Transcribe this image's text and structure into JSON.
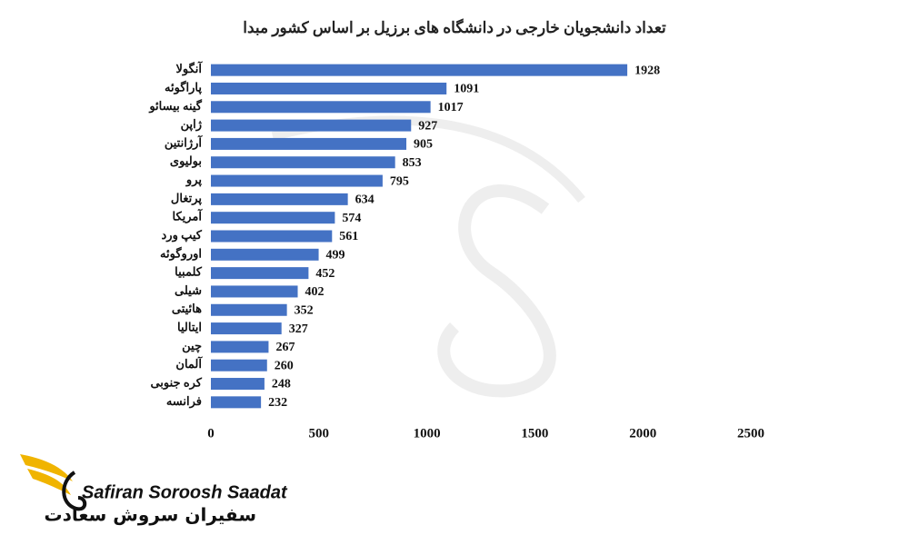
{
  "chart_data": {
    "type": "bar",
    "orientation": "horizontal",
    "title": "تعداد دانشجویان خارجی در دانشگاه های برزیل بر اساس کشور مبدا",
    "categories": [
      "آنگولا",
      "پاراگوئه",
      "گینه بیسائو",
      "ژاپن",
      "آرژانتین",
      "بولیوی",
      "پرو",
      "پرتغال",
      "آمریکا",
      "کیپ ورد",
      "اوروگوئه",
      "کلمبیا",
      "شیلی",
      "هائیتی",
      "ایتالیا",
      "چین",
      "آلمان",
      "کره جنوبی",
      "فرانسه"
    ],
    "values": [
      1928,
      1091,
      1017,
      927,
      905,
      853,
      795,
      634,
      574,
      561,
      499,
      452,
      402,
      352,
      327,
      267,
      260,
      248,
      232
    ],
    "color": "#4472c4",
    "xlim": [
      0,
      2500
    ],
    "xticks": [
      0,
      500,
      1000,
      1500,
      2000,
      2500
    ],
    "grid": false
  },
  "logo": {
    "name_en": "Safiran Soroosh Saadat",
    "name_fa": "سفیران سروش سعادت"
  }
}
